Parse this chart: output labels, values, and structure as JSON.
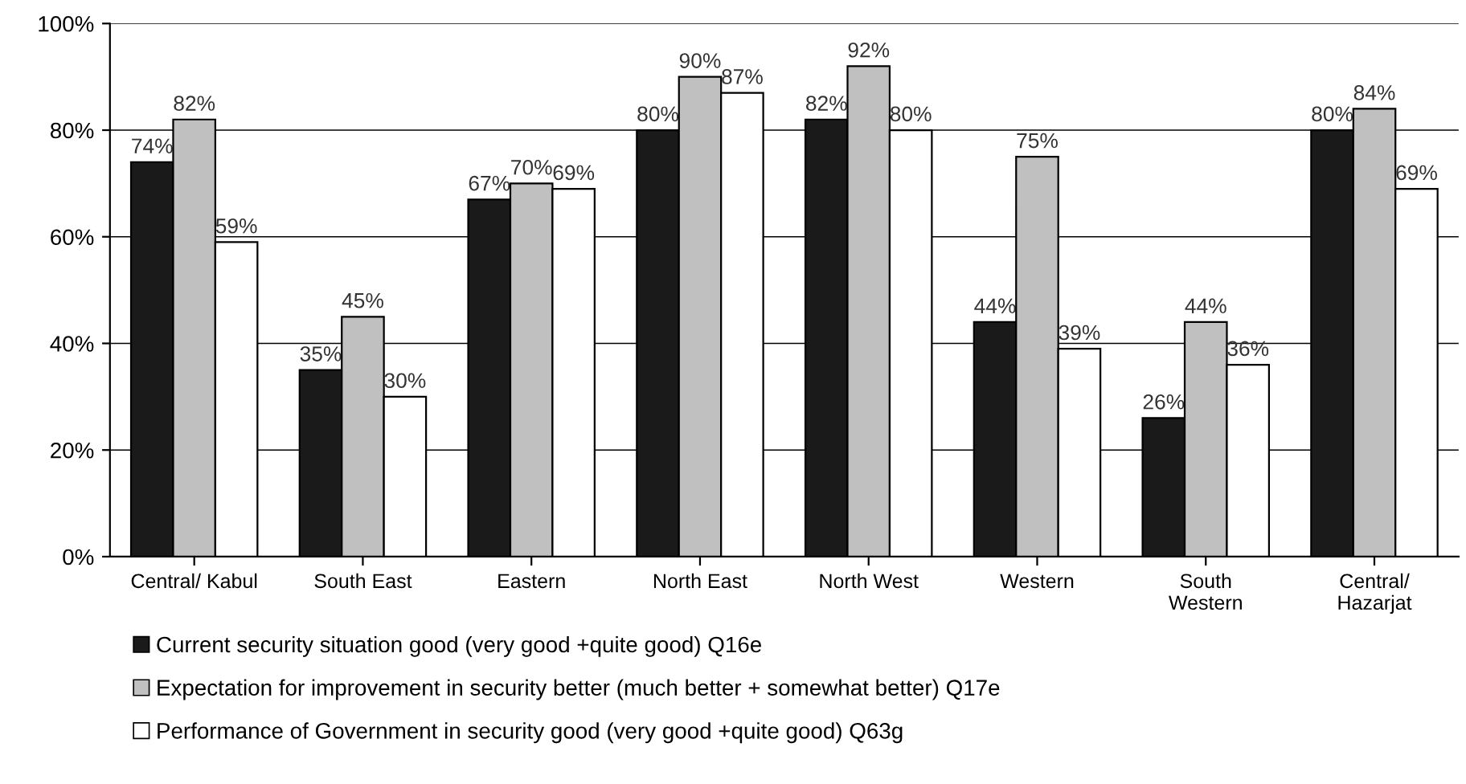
{
  "chart_data": {
    "type": "bar",
    "categories": [
      "Central/ Kabul",
      "South East",
      "Eastern",
      "North East",
      "North West",
      "Western",
      "South\nWestern",
      "Central/\nHazarjat"
    ],
    "series": [
      {
        "name": "Current security situation good (very good +quite good) Q16e",
        "color": "#1a1a1a",
        "values": [
          74,
          35,
          67,
          80,
          82,
          44,
          26,
          80
        ],
        "value_labels": [
          "74%",
          "35%",
          "67%",
          "80%",
          "82%",
          "44%",
          "26%",
          "80%"
        ]
      },
      {
        "name": "Expectation for improvement in security better (much better + somewhat better) Q17e",
        "color": "#c0c0c0",
        "values": [
          82,
          45,
          70,
          90,
          92,
          75,
          44,
          84
        ],
        "value_labels": [
          "82%",
          "45%",
          "70%",
          "90%",
          "92%",
          "75%",
          "44%",
          "84%"
        ]
      },
      {
        "name": "Performance of Government in security good (very good +quite good) Q63g",
        "color": "#ffffff",
        "values": [
          59,
          30,
          69,
          87,
          80,
          39,
          36,
          69
        ],
        "value_labels": [
          "59%",
          "30%",
          "69%",
          "87%",
          "80%",
          "39%",
          "36%",
          "69%"
        ]
      }
    ],
    "ylim": [
      0,
      100
    ],
    "yticks": [
      {
        "value": 0,
        "label": "0%"
      },
      {
        "value": 20,
        "label": "20%"
      },
      {
        "value": 40,
        "label": "40%"
      },
      {
        "value": 60,
        "label": "60%"
      },
      {
        "value": 80,
        "label": "80%"
      },
      {
        "value": 100,
        "label": "100%"
      }
    ],
    "grid": "y",
    "legend": "bottom"
  }
}
